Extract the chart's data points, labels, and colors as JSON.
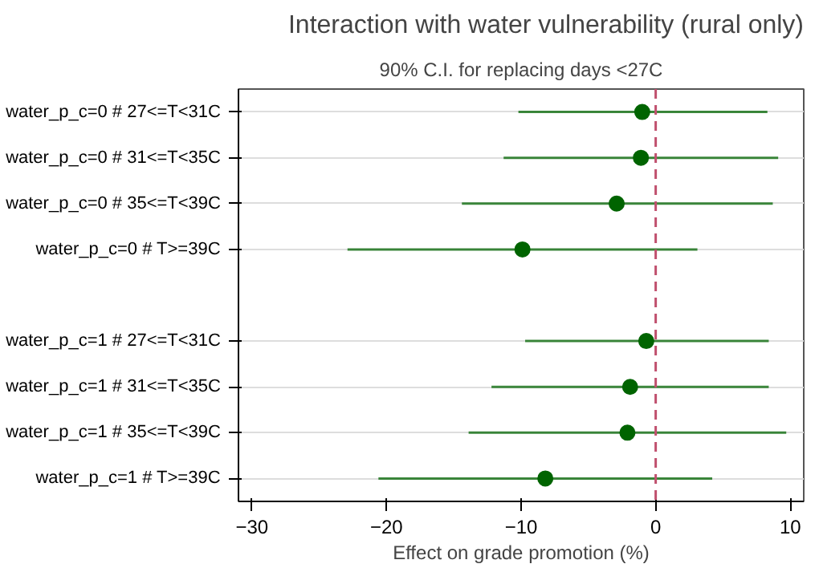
{
  "chart_data": {
    "type": "scatter",
    "orientation": "horizontal",
    "title": "Interaction with water vulnerability (rural only)",
    "subtitle": "90% C.I. for replacing days <27C",
    "xlabel": "Effect on grade promotion (%)",
    "categories": [
      "water_p_c=0 # 27<=T<31C",
      "water_p_c=0 # 31<=T<35C",
      "water_p_c=0 # 35<=T<39C",
      "water_p_c=0 # T>=39C",
      null,
      "water_p_c=1 # 27<=T<31C",
      "water_p_c=1 # 31<=T<35C",
      "water_p_c=1 # 35<=T<39C",
      "water_p_c=1 # T>=39C"
    ],
    "series": [
      {
        "color": "#006400",
        "values": [
          -1.0,
          -1.1,
          -2.9,
          -9.9,
          null,
          -0.7,
          -1.9,
          -2.1,
          -8.2
        ],
        "errors": [
          [
            -10.2,
            8.3
          ],
          [
            -11.3,
            9.1
          ],
          [
            -14.4,
            8.7
          ],
          [
            -22.9,
            3.1
          ],
          null,
          [
            -9.7,
            8.4
          ],
          [
            -12.2,
            8.4
          ],
          [
            -13.9,
            9.7
          ],
          [
            -20.6,
            4.2
          ]
        ]
      }
    ],
    "xlim": [
      -31,
      11
    ],
    "xticks": [
      -30,
      -20,
      -10,
      0,
      10
    ],
    "ref_lines": [
      {
        "axis": "x",
        "value": 0,
        "color": "#c0506e",
        "line_style": "dashed"
      }
    ],
    "grid": "y",
    "marker": "circle"
  }
}
